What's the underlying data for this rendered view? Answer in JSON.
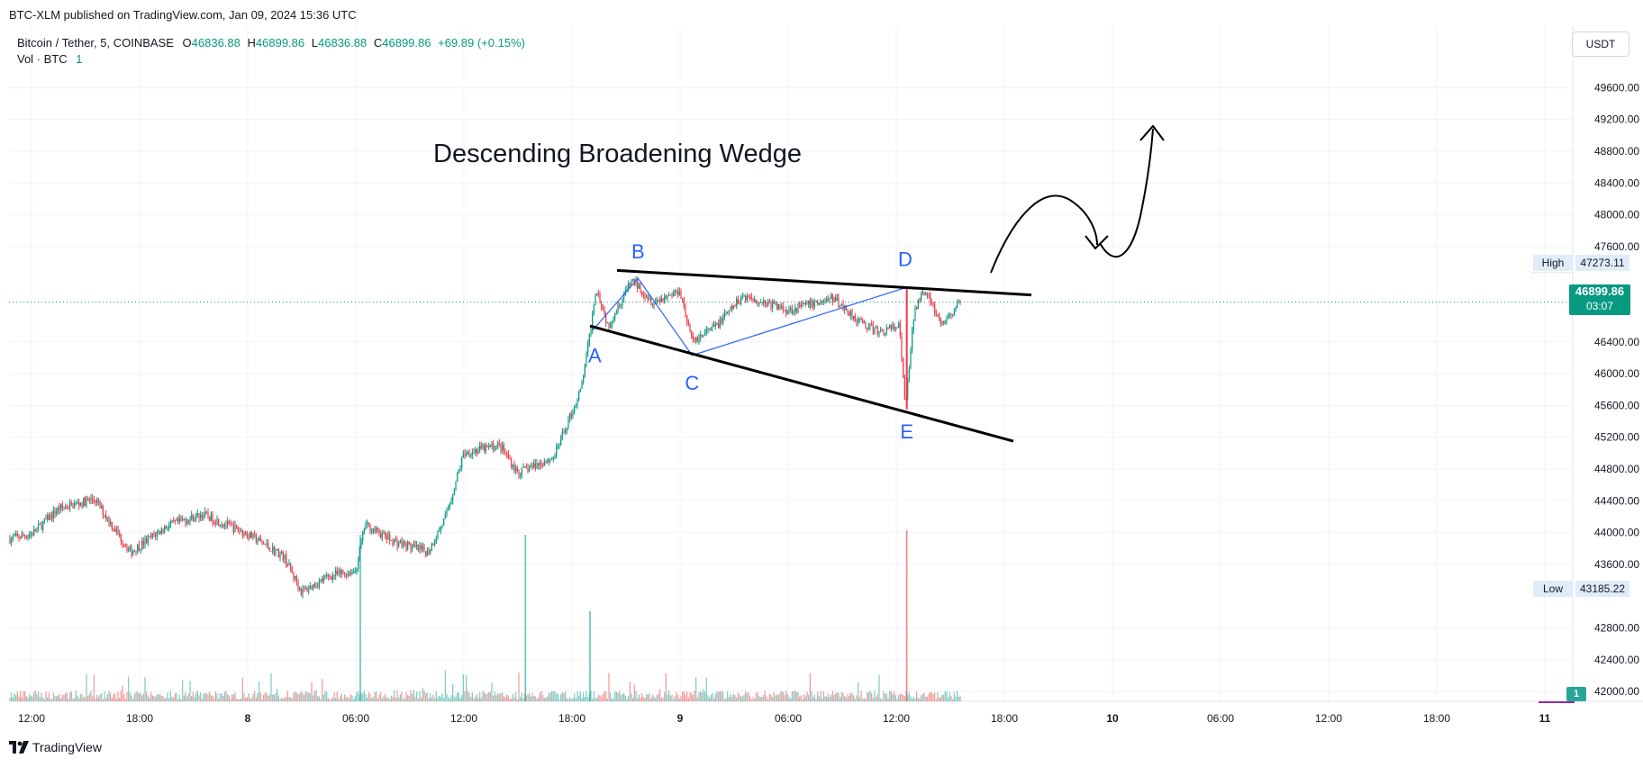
{
  "header": {
    "published": "BTC-XLM published on TradingView.com, Jan 09, 2024 15:36 UTC",
    "symbol": "Bitcoin / Tether, 5, COINBASE",
    "ohlc": {
      "o_label": "O",
      "o": "46836.88",
      "h_label": "H",
      "h": "46899.86",
      "l_label": "L",
      "l": "46836.88",
      "c_label": "C",
      "c": "46899.86",
      "change": "+69.89 (+0.15%)"
    },
    "vol_label": "Vol · BTC",
    "vol_value": "1"
  },
  "currency_button": "USDT",
  "annotation_title": "Descending Broadening Wedge",
  "levels": {
    "high_label": "High",
    "high_value": "47273.11",
    "low_label": "Low",
    "low_value": "43185.22",
    "last_price": "46899.86",
    "countdown": "03:07",
    "volume_badge": "1"
  },
  "footer_brand": "TradingView",
  "colors": {
    "up": "#089981",
    "down": "#f23645",
    "accent": "#2962ff",
    "volume_up": "#26a69a",
    "volume_down": "#ef5350"
  },
  "chart_data": {
    "type": "candlestick",
    "interval": "5",
    "exchange": "COINBASE",
    "ylim": [
      41700,
      49900
    ],
    "y_ticks": [
      42000,
      42400,
      42800,
      43600,
      44000,
      44400,
      44800,
      45200,
      45600,
      46000,
      46400,
      47600,
      48000,
      48400,
      48800,
      49200,
      49600
    ],
    "y_tick_labels": [
      "42000.00",
      "42400.00",
      "42800.00",
      "43600.00",
      "44000.00",
      "44400.00",
      "44800.00",
      "45200.00",
      "45600.00",
      "46000.00",
      "46400.00",
      "47600.00",
      "48000.00",
      "48400.00",
      "48800.00",
      "49200.00",
      "49600.00"
    ],
    "x_ticks": [
      "2024-01-07T12:00",
      "2024-01-07T18:00",
      "2024-01-08T00:00",
      "2024-01-08T06:00",
      "2024-01-08T12:00",
      "2024-01-08T18:00",
      "2024-01-09T00:00",
      "2024-01-09T06:00",
      "2024-01-09T12:00",
      "2024-01-09T18:00",
      "2024-01-10T00:00",
      "2024-01-10T06:00",
      "2024-01-10T12:00",
      "2024-01-10T18:00",
      "2024-01-11T00:00"
    ],
    "x_tick_labels": [
      "12:00",
      "18:00",
      "8",
      "06:00",
      "12:00",
      "18:00",
      "9",
      "06:00",
      "12:00",
      "18:00",
      "10",
      "06:00",
      "12:00",
      "18:00",
      "11"
    ],
    "price_path": [
      {
        "t": "2024-01-07T10:45",
        "p": 43920
      },
      {
        "t": "2024-01-07T12:00",
        "p": 43980
      },
      {
        "t": "2024-01-07T13:30",
        "p": 44300
      },
      {
        "t": "2024-01-07T15:30",
        "p": 44420
      },
      {
        "t": "2024-01-07T17:30",
        "p": 43750
      },
      {
        "t": "2024-01-07T19:30",
        "p": 44080
      },
      {
        "t": "2024-01-07T21:30",
        "p": 44230
      },
      {
        "t": "2024-01-08T00:00",
        "p": 43980
      },
      {
        "t": "2024-01-08T02:00",
        "p": 43700
      },
      {
        "t": "2024-01-08T03:00",
        "p": 43250
      },
      {
        "t": "2024-01-08T04:30",
        "p": 43450
      },
      {
        "t": "2024-01-08T06:00",
        "p": 43520
      },
      {
        "t": "2024-01-08T06:30",
        "p": 44100
      },
      {
        "t": "2024-01-08T08:00",
        "p": 43900
      },
      {
        "t": "2024-01-08T10:00",
        "p": 43750
      },
      {
        "t": "2024-01-08T11:00",
        "p": 44200
      },
      {
        "t": "2024-01-08T12:00",
        "p": 45000
      },
      {
        "t": "2024-01-08T14:00",
        "p": 45100
      },
      {
        "t": "2024-01-08T15:00",
        "p": 44750
      },
      {
        "t": "2024-01-08T17:00",
        "p": 44950
      },
      {
        "t": "2024-01-08T18:30",
        "p": 45800
      },
      {
        "t": "2024-01-08T19:00",
        "p": 46500
      },
      {
        "t": "2024-01-08T19:20",
        "p": 47100
      },
      {
        "t": "2024-01-08T20:00",
        "p": 46600
      },
      {
        "t": "2024-01-08T21:20",
        "p": 47180
      },
      {
        "t": "2024-01-08T22:30",
        "p": 46900
      },
      {
        "t": "2024-01-09T00:00",
        "p": 47050
      },
      {
        "t": "2024-01-09T00:40",
        "p": 46400
      },
      {
        "t": "2024-01-09T02:00",
        "p": 46600
      },
      {
        "t": "2024-01-09T03:30",
        "p": 46980
      },
      {
        "t": "2024-01-09T06:00",
        "p": 46800
      },
      {
        "t": "2024-01-09T08:30",
        "p": 46950
      },
      {
        "t": "2024-01-09T10:00",
        "p": 46650
      },
      {
        "t": "2024-01-09T11:00",
        "p": 46520
      },
      {
        "t": "2024-01-09T12:10",
        "p": 46600
      },
      {
        "t": "2024-01-09T12:30",
        "p": 45560
      },
      {
        "t": "2024-01-09T13:00",
        "p": 46780
      },
      {
        "t": "2024-01-09T13:30",
        "p": 47100
      },
      {
        "t": "2024-01-09T14:30",
        "p": 46600
      },
      {
        "t": "2024-01-09T15:35",
        "p": 46899.86
      }
    ],
    "volume_spikes": [
      {
        "t": "2024-01-08T06:15",
        "v": "high"
      },
      {
        "t": "2024-01-08T15:25",
        "v": "high"
      },
      {
        "t": "2024-01-08T19:00",
        "v": "medium"
      },
      {
        "t": "2024-01-09T12:35",
        "v": "very-high"
      }
    ],
    "pattern_points": [
      {
        "label": "A",
        "t": "2024-01-08T19:10",
        "p": 46550
      },
      {
        "label": "B",
        "t": "2024-01-08T21:40",
        "p": 47200
      },
      {
        "label": "C",
        "t": "2024-01-09T00:40",
        "p": 46230
      },
      {
        "label": "D",
        "t": "2024-01-09T12:30",
        "p": 47080
      },
      {
        "label": "E",
        "t": "2024-01-09T12:35",
        "p": 45550
      }
    ],
    "trendlines": [
      {
        "name": "upper",
        "from": {
          "t": "2024-01-08T20:30",
          "p": 47300
        },
        "to": {
          "t": "2024-01-09T19:30",
          "p": 46990
        }
      },
      {
        "name": "lower",
        "from": {
          "t": "2024-01-08T19:00",
          "p": 46600
        },
        "to": {
          "t": "2024-01-09T18:30",
          "p": 45150
        }
      }
    ]
  }
}
